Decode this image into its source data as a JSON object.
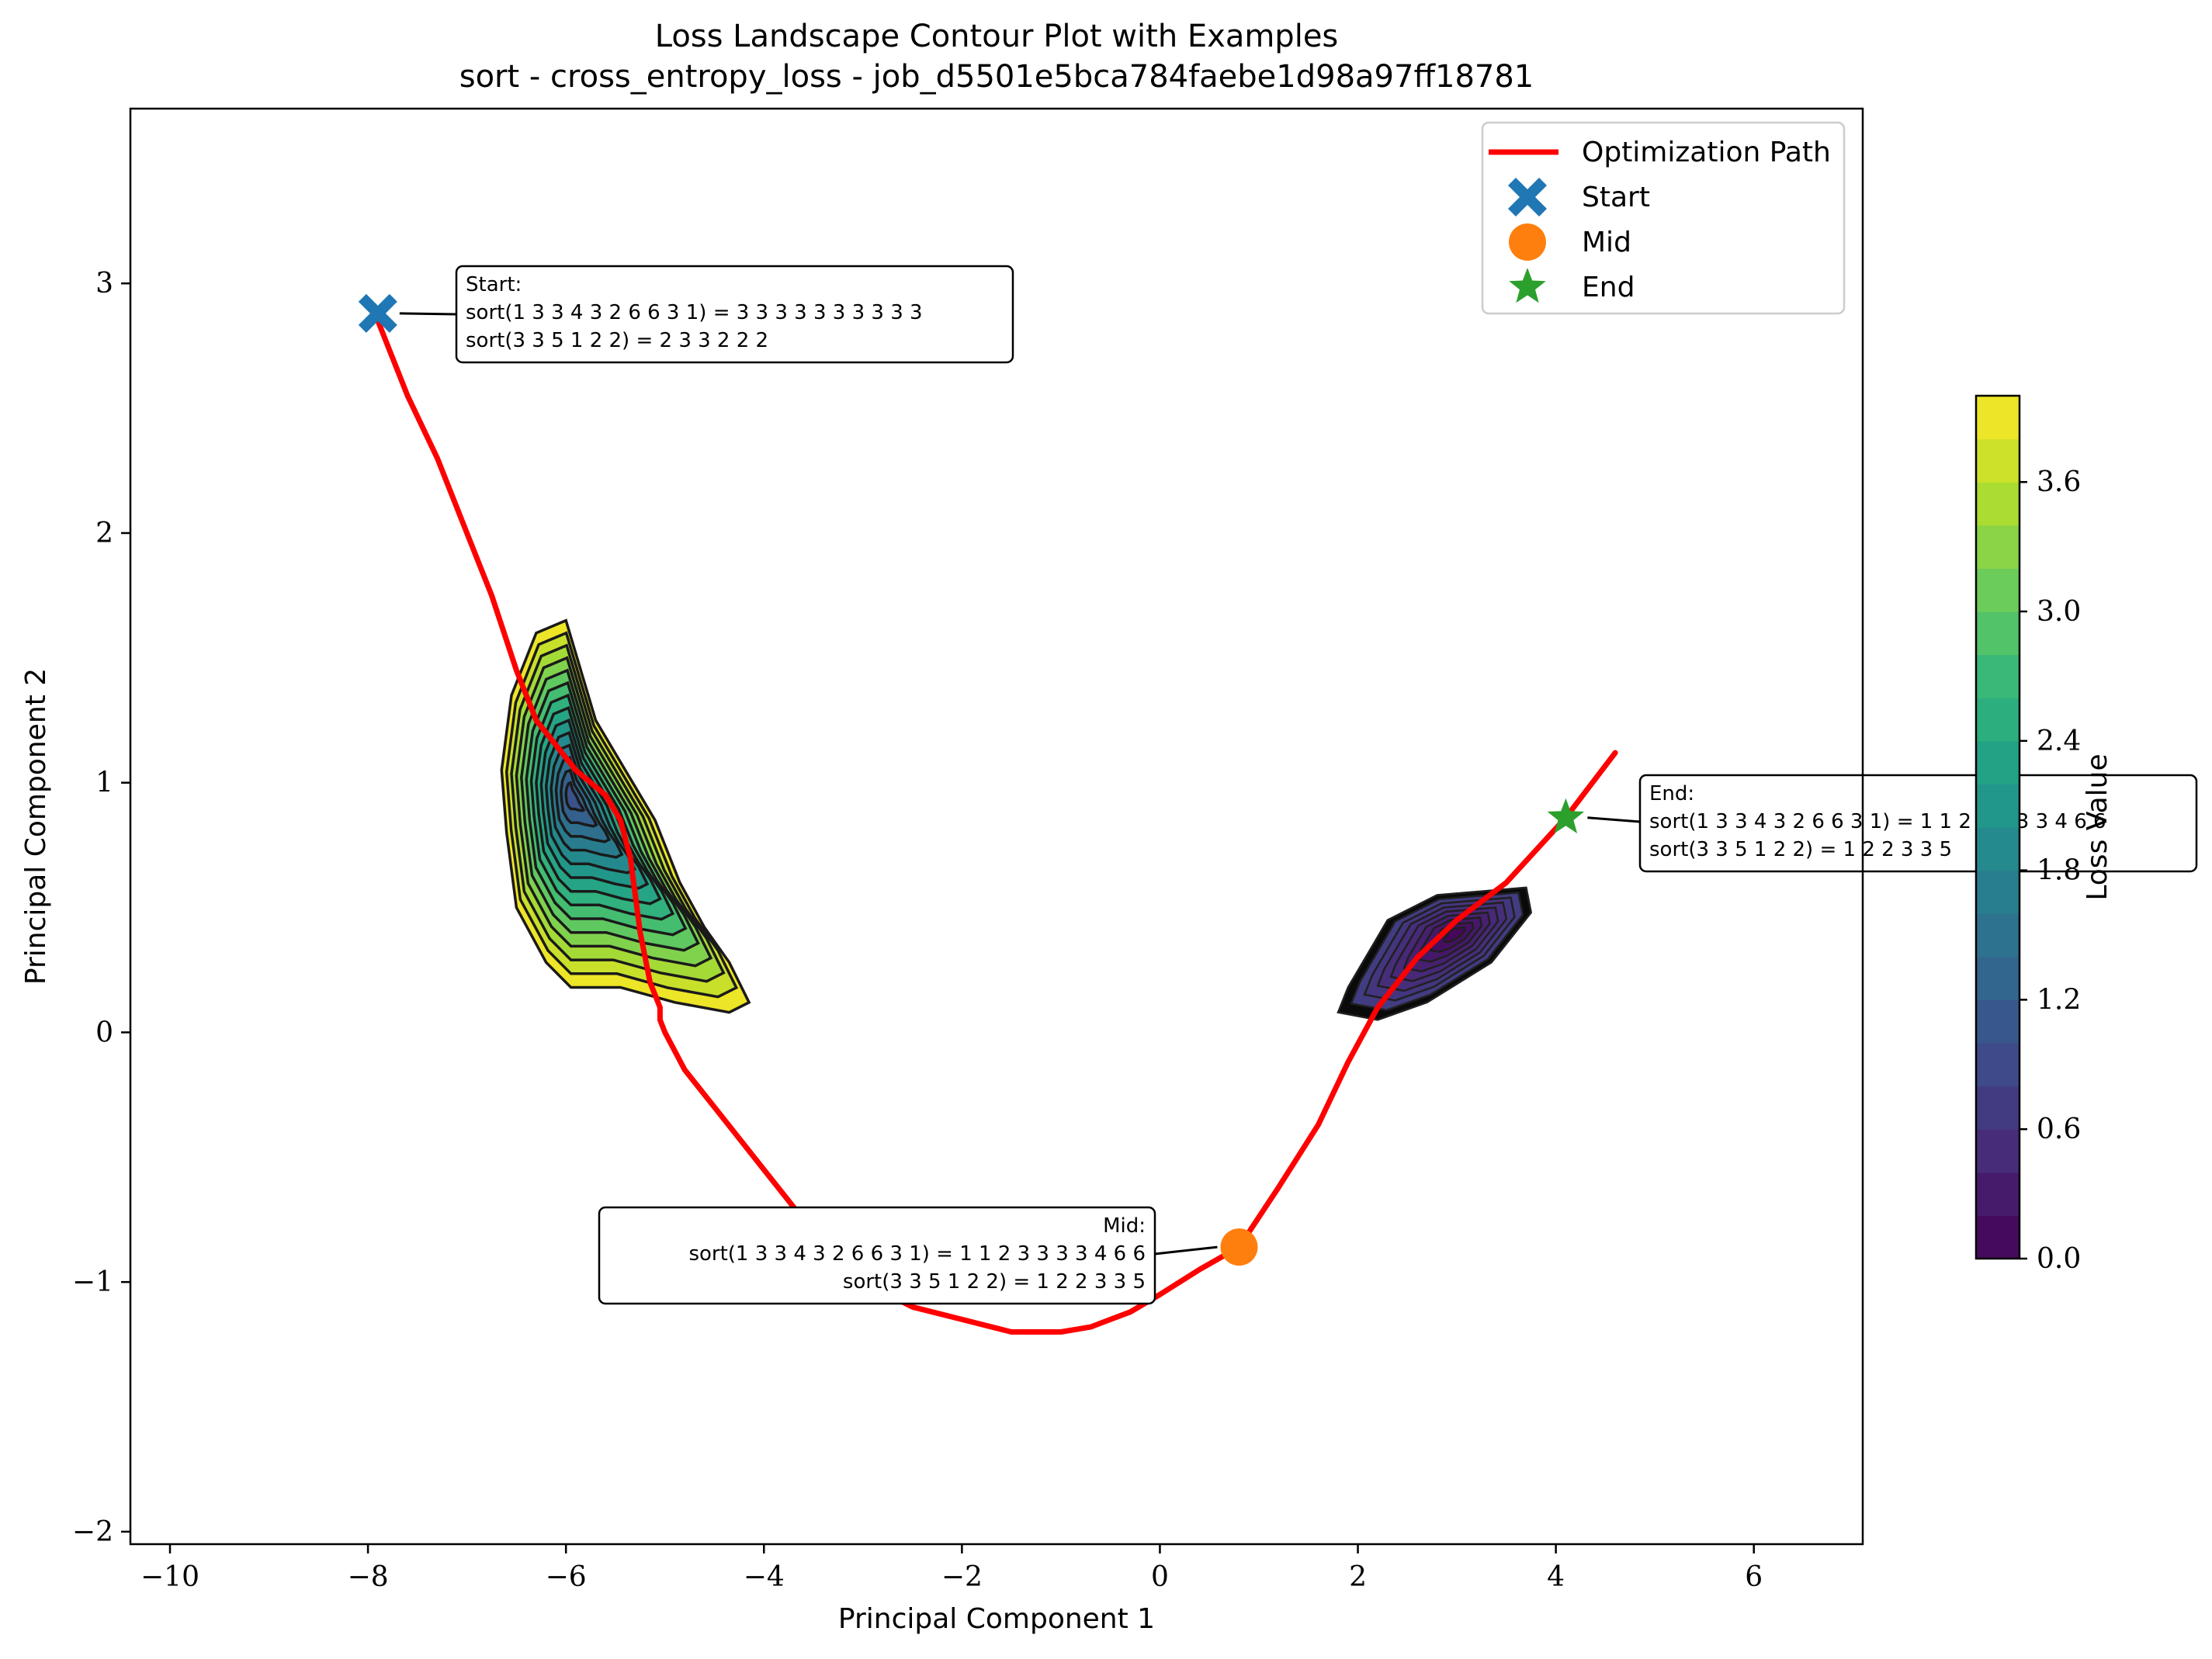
{
  "chart_data": {
    "type": "contour",
    "title": "Loss Landscape Contour Plot with Examples",
    "subtitle": "sort - cross_entropy_loss - job_d5501e5bca784faebe1d98a97ff18781",
    "xlabel": "Principal Component 1",
    "ylabel": "Principal Component 2",
    "xlim": [
      -10.4,
      7.1
    ],
    "ylim": [
      -2.05,
      3.7
    ],
    "xticks": [
      -10,
      -8,
      -6,
      -4,
      -2,
      0,
      2,
      4,
      6
    ],
    "yticks": [
      -2,
      -1,
      0,
      1,
      2,
      3
    ],
    "grid": false,
    "legend_position": "top-right",
    "legend": [
      {
        "label": "Optimization Path",
        "marker": "line",
        "color": "#ff0000"
      },
      {
        "label": "Start",
        "marker": "X",
        "color": "#1f77b4"
      },
      {
        "label": "Mid",
        "marker": "circle",
        "color": "#ff7f0e"
      },
      {
        "label": "End",
        "marker": "star",
        "color": "#2ca02c"
      }
    ],
    "optimization_path": {
      "name": "Optimization Path",
      "color": "#ff0000",
      "x": [
        -7.9,
        -7.6,
        -7.3,
        -7.0,
        -6.75,
        -6.5,
        -6.3,
        -6.1,
        -5.9,
        -5.75,
        -5.6,
        -5.45,
        -5.35,
        -5.3,
        -5.25,
        -5.2,
        -5.15,
        -5.1,
        -5.05,
        -5.05,
        -5.0,
        -4.8,
        -4.4,
        -4.0,
        -3.5,
        -3.0,
        -2.5,
        -2.0,
        -1.5,
        -1.0,
        -0.7,
        -0.5,
        -0.3,
        0.0,
        0.4,
        0.8,
        1.2,
        1.6,
        1.9,
        2.2,
        2.6,
        3.0,
        3.5,
        4.1,
        4.6
      ],
      "y": [
        2.85,
        2.55,
        2.3,
        2.0,
        1.75,
        1.45,
        1.25,
        1.15,
        1.05,
        1.0,
        0.95,
        0.85,
        0.7,
        0.55,
        0.4,
        0.3,
        0.2,
        0.15,
        0.1,
        0.05,
        0.0,
        -0.15,
        -0.35,
        -0.55,
        -0.8,
        -1.0,
        -1.1,
        -1.15,
        -1.2,
        -1.2,
        -1.18,
        -1.15,
        -1.12,
        -1.05,
        -0.95,
        -0.86,
        -0.62,
        -0.37,
        -0.12,
        0.1,
        0.3,
        0.45,
        0.6,
        0.86,
        1.12
      ]
    },
    "markers": [
      {
        "name": "Start",
        "x": -7.9,
        "y": 2.88,
        "color": "#1f77b4"
      },
      {
        "name": "Mid",
        "x": 0.8,
        "y": -0.86,
        "color": "#ff7f0e"
      },
      {
        "name": "End",
        "x": 4.1,
        "y": 0.86,
        "color": "#2ca02c"
      }
    ],
    "annotations": [
      {
        "name": "Start",
        "lines": [
          "Start:",
          "sort(1 3 3 4 3 2 6 6 3 1) = 3 3 3 3 3 3 3 3 3 3",
          "sort(3 3 5 1 2 2) = 2 3 3 2 2 2"
        ]
      },
      {
        "name": "Mid",
        "lines": [
          "Mid:",
          "sort(1 3 3 4 3 2 6 6 3 1) = 1 1 2 3 3 3 3 4 6 6",
          "sort(3 3 5 1 2 2) = 1 2 2 3 3 5"
        ]
      },
      {
        "name": "End",
        "lines": [
          "End:",
          "sort(1 3 3 4 3 2 6 6 3 1) = 1 1 2 3 3 3 3 4 6 6",
          "sort(3 3 5 1 2 2) = 1 2 2 3 3 5"
        ]
      }
    ],
    "regions": [
      {
        "name": "high-loss-basin",
        "center": [
          -5.95,
          0.95
        ],
        "min_loss": 1.0,
        "max_loss": 3.9
      },
      {
        "name": "low-loss-basin",
        "center": [
          3.0,
          0.4
        ],
        "min_loss": 0.1,
        "max_loss": 1.0
      }
    ],
    "colorbar": {
      "label": "Loss Value",
      "colormap": "viridis",
      "range": [
        0.0,
        4.0
      ],
      "ticks": [
        "0.0",
        "0.6",
        "1.2",
        "1.8",
        "2.4",
        "3.0",
        "3.6"
      ],
      "levels": 20
    }
  }
}
